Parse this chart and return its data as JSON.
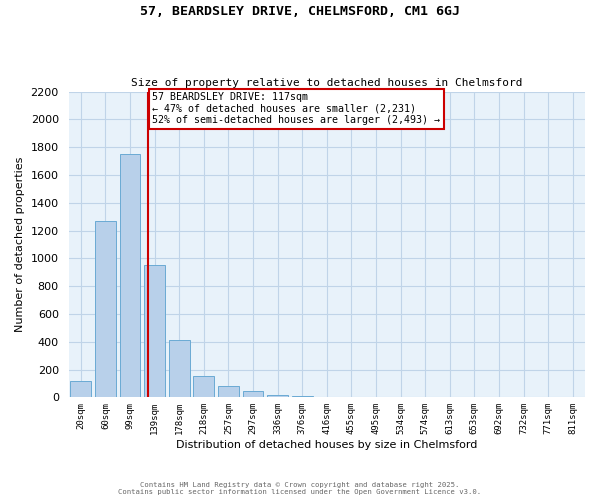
{
  "title_line1": "57, BEARDSLEY DRIVE, CHELMSFORD, CM1 6GJ",
  "title_line2": "Size of property relative to detached houses in Chelmsford",
  "xlabel": "Distribution of detached houses by size in Chelmsford",
  "ylabel": "Number of detached properties",
  "bin_labels": [
    "20sqm",
    "60sqm",
    "99sqm",
    "139sqm",
    "178sqm",
    "218sqm",
    "257sqm",
    "297sqm",
    "336sqm",
    "376sqm",
    "416sqm",
    "455sqm",
    "495sqm",
    "534sqm",
    "574sqm",
    "613sqm",
    "653sqm",
    "692sqm",
    "732sqm",
    "771sqm",
    "811sqm"
  ],
  "bar_heights": [
    120,
    1270,
    1750,
    950,
    415,
    155,
    80,
    45,
    20,
    10,
    0,
    0,
    0,
    0,
    0,
    0,
    0,
    0,
    0,
    0,
    0
  ],
  "bar_color": "#b8d0ea",
  "bar_edge_color": "#6aaad4",
  "property_size_idx": 2.75,
  "vline_color": "#cc0000",
  "annotation_text": "57 BEARDSLEY DRIVE: 117sqm\n← 47% of detached houses are smaller (2,231)\n52% of semi-detached houses are larger (2,493) →",
  "annotation_box_color": "#cc0000",
  "ylim": [
    0,
    2200
  ],
  "yticks": [
    0,
    200,
    400,
    600,
    800,
    1000,
    1200,
    1400,
    1600,
    1800,
    2000,
    2200
  ],
  "grid_color": "#c0d4e8",
  "bg_color": "#e8f2fa",
  "footer_line1": "Contains HM Land Registry data © Crown copyright and database right 2025.",
  "footer_line2": "Contains public sector information licensed under the Open Government Licence v3.0."
}
